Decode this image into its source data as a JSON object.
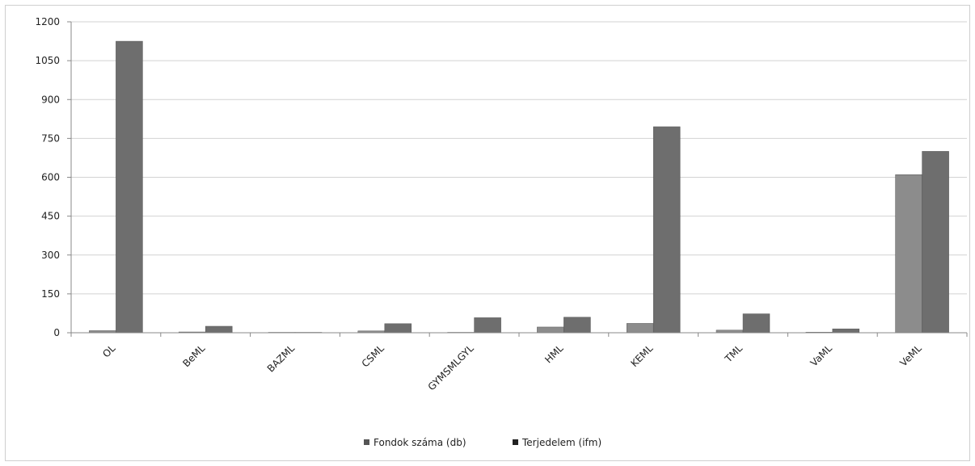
{
  "chart_data": {
    "type": "bar",
    "categories": [
      "OL",
      "BeML",
      "BAZML",
      "CSML",
      "GYMSMLGYL",
      "HML",
      "KEML",
      "TML",
      "VaML",
      "VeML"
    ],
    "series": [
      {
        "name": "Fondok száma (db)",
        "color": "#8c8c8c",
        "values": [
          8,
          3,
          1,
          7,
          0,
          22,
          36,
          10,
          2,
          610
        ]
      },
      {
        "name": "Terjedelem (ifm)",
        "color": "#6e6e6e",
        "values": [
          1125,
          25,
          1,
          35,
          58,
          60,
          795,
          73,
          15,
          700
        ]
      }
    ],
    "ylim": [
      0,
      1200
    ],
    "yticks": [
      "0",
      "150",
      "300",
      "450",
      "600",
      "750",
      "900",
      "1050",
      "1200"
    ],
    "grid": true,
    "legend_position": "bottom",
    "title": "",
    "xlabel": "",
    "ylabel": ""
  }
}
